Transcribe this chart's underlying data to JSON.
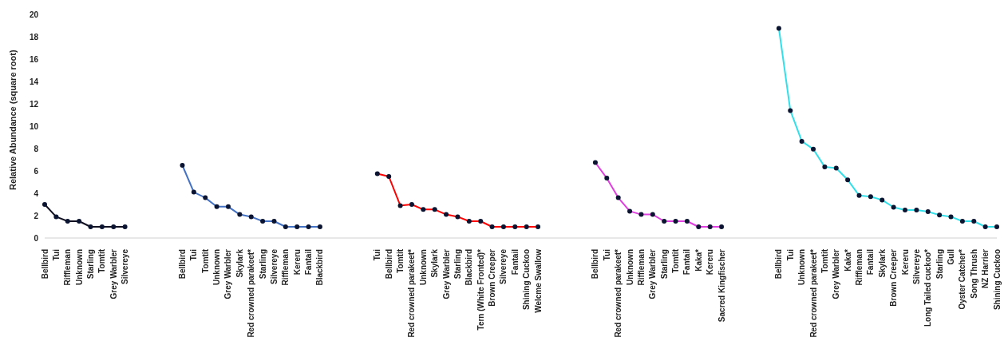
{
  "chart_data": {
    "type": "line",
    "ylabel": "Relative Abundance (square root)",
    "ylim": [
      0,
      20
    ],
    "yticks": [
      0,
      2,
      4,
      6,
      8,
      10,
      12,
      14,
      16,
      18,
      20
    ],
    "grid": false,
    "legend": false,
    "marker": "circle",
    "line_style": "solid",
    "categories": [
      "Bellbird",
      "Tui",
      "Riffleman",
      "Unknown",
      "Starling",
      "Tomtit",
      "Grey Warbler",
      "Silvereye",
      null,
      null,
      null,
      null,
      "Bellbird",
      "Tui",
      "Tomtit",
      "Unknown",
      "Grey Warbler",
      "Skylark",
      "Red crowned parakeet*",
      "Starling",
      "Silvereye",
      "Riffleman",
      "Kereru",
      "Fantail",
      "Blackbird",
      null,
      null,
      null,
      null,
      "Tui",
      "Bellbird",
      "Tomtit",
      "Red crowned parakeet*",
      "Unknown",
      "Skylark",
      "Grey Warbler",
      "Starling",
      "Blackbird",
      "Tern (White Fronted)*",
      "Brown Creeper",
      "Silvereye",
      "Fantail",
      "Shining Cuckoo",
      "Welcme Swallow",
      null,
      null,
      null,
      null,
      "Bellbird",
      "Tui",
      "Red crowned parakeet*",
      "Unknown",
      "Riffleman",
      "Grey Warbler",
      "Starling",
      "Tomtit",
      "Fantail",
      "Kaka*",
      "Kereru",
      "Sacred Kingfischer",
      null,
      null,
      null,
      null,
      "Bellbird",
      "Tui",
      "Unknown",
      "Red crowned parakeet*",
      "Tomtit",
      "Grey Warbler",
      "Kaka*",
      "Riffleman",
      "Fantail",
      "Skylark",
      "Brown Creeper",
      "Kereru",
      "Silvereye",
      "Long Tailed cuckoo*",
      "Starling",
      "Gull",
      "Oyster Catcher*",
      "Song Thrush",
      "NZ Harrier",
      "Shining Cuckoo"
    ],
    "series": [
      {
        "color": "#111122",
        "values": [
          3.0,
          1.9,
          1.5,
          1.5,
          1.0,
          1.0,
          1.0,
          1.0,
          null,
          null,
          null,
          null,
          null,
          null,
          null,
          null,
          null,
          null,
          null,
          null,
          null,
          null,
          null,
          null,
          null,
          null,
          null,
          null,
          null,
          null,
          null,
          null,
          null,
          null,
          null,
          null,
          null,
          null,
          null,
          null,
          null,
          null,
          null,
          null,
          null,
          null,
          null,
          null,
          null,
          null,
          null,
          null,
          null,
          null,
          null,
          null,
          null,
          null,
          null,
          null,
          null,
          null,
          null,
          null,
          null,
          null,
          null,
          null,
          null,
          null,
          null,
          null,
          null,
          null,
          null,
          null,
          null,
          null,
          null,
          null,
          null,
          null,
          null,
          null
        ]
      },
      {
        "color": "#4472c4",
        "values": [
          null,
          null,
          null,
          null,
          null,
          null,
          null,
          null,
          null,
          null,
          null,
          null,
          6.5,
          4.1,
          3.6,
          2.8,
          2.8,
          2.1,
          1.9,
          1.5,
          1.5,
          1.0,
          1.0,
          1.0,
          1.0,
          null,
          null,
          null,
          null,
          null,
          null,
          null,
          null,
          null,
          null,
          null,
          null,
          null,
          null,
          null,
          null,
          null,
          null,
          null,
          null,
          null,
          null,
          null,
          null,
          null,
          null,
          null,
          null,
          null,
          null,
          null,
          null,
          null,
          null,
          null,
          null,
          null,
          null,
          null,
          null,
          null,
          null,
          null,
          null,
          null,
          null,
          null,
          null,
          null,
          null,
          null,
          null,
          null,
          null,
          null,
          null,
          null,
          null,
          null
        ]
      },
      {
        "color": "#ff0000",
        "values": [
          null,
          null,
          null,
          null,
          null,
          null,
          null,
          null,
          null,
          null,
          null,
          null,
          null,
          null,
          null,
          null,
          null,
          null,
          null,
          null,
          null,
          null,
          null,
          null,
          null,
          null,
          null,
          null,
          null,
          5.75,
          5.5,
          2.9,
          3.0,
          2.55,
          2.55,
          2.1,
          1.9,
          1.5,
          1.5,
          1.0,
          1.0,
          1.0,
          1.0,
          1.0,
          null,
          null,
          null,
          null,
          null,
          null,
          null,
          null,
          null,
          null,
          null,
          null,
          null,
          null,
          null,
          null,
          null,
          null,
          null,
          null,
          null,
          null,
          null,
          null,
          null,
          null,
          null,
          null,
          null,
          null,
          null,
          null,
          null,
          null,
          null,
          null,
          null,
          null,
          null,
          null
        ]
      },
      {
        "color": "#e040e0",
        "values": [
          null,
          null,
          null,
          null,
          null,
          null,
          null,
          null,
          null,
          null,
          null,
          null,
          null,
          null,
          null,
          null,
          null,
          null,
          null,
          null,
          null,
          null,
          null,
          null,
          null,
          null,
          null,
          null,
          null,
          null,
          null,
          null,
          null,
          null,
          null,
          null,
          null,
          null,
          null,
          null,
          null,
          null,
          null,
          null,
          null,
          null,
          null,
          null,
          6.75,
          5.35,
          3.6,
          2.4,
          2.1,
          2.1,
          1.5,
          1.5,
          1.5,
          1.0,
          1.0,
          1.0,
          null,
          null,
          null,
          null,
          null,
          null,
          null,
          null,
          null,
          null,
          null,
          null,
          null,
          null,
          null,
          null,
          null,
          null,
          null,
          null,
          null,
          null,
          null,
          null
        ]
      },
      {
        "color": "#33e0ea",
        "values": [
          null,
          null,
          null,
          null,
          null,
          null,
          null,
          null,
          null,
          null,
          null,
          null,
          null,
          null,
          null,
          null,
          null,
          null,
          null,
          null,
          null,
          null,
          null,
          null,
          null,
          null,
          null,
          null,
          null,
          null,
          null,
          null,
          null,
          null,
          null,
          null,
          null,
          null,
          null,
          null,
          null,
          null,
          null,
          null,
          null,
          null,
          null,
          null,
          null,
          null,
          null,
          null,
          null,
          null,
          null,
          null,
          null,
          null,
          null,
          null,
          null,
          null,
          null,
          null,
          18.75,
          11.4,
          8.65,
          7.95,
          6.35,
          6.25,
          5.2,
          3.8,
          3.7,
          3.4,
          2.75,
          2.5,
          2.5,
          2.35,
          2.05,
          1.9,
          1.5,
          1.5,
          1.0,
          1.0
        ]
      }
    ]
  }
}
